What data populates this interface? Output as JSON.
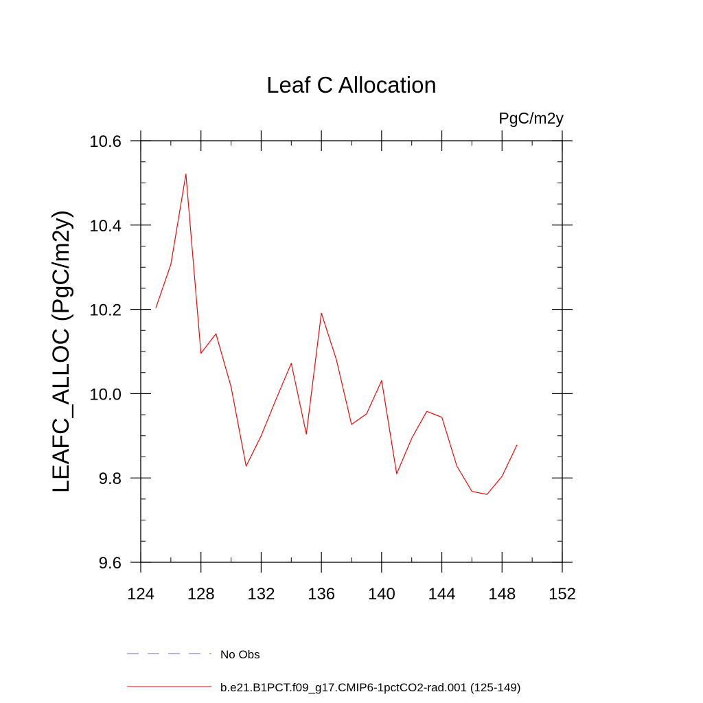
{
  "chart_data": {
    "type": "line",
    "title": "Leaf C Allocation",
    "units_label": "PgC/m2y",
    "xlabel": "",
    "ylabel": "LEAFC_ALLOC  (PgC/m2y)",
    "xlim": [
      124,
      152
    ],
    "ylim": [
      9.6,
      10.6
    ],
    "x_ticks": [
      124,
      128,
      132,
      136,
      140,
      144,
      148,
      152
    ],
    "x_tick_labels": [
      "124",
      "128",
      "132",
      "136",
      "140",
      "144",
      "148",
      "152"
    ],
    "y_ticks": [
      9.6,
      9.8,
      10.0,
      10.2,
      10.4,
      10.6
    ],
    "y_tick_labels": [
      "9.6",
      "9.8",
      "10.0",
      "10.2",
      "10.4",
      "10.6"
    ],
    "grid": false,
    "legend_position": "bottom",
    "series": [
      {
        "name": "No Obs",
        "color": "#6666cc",
        "style": "dashed",
        "x": [],
        "y": []
      },
      {
        "name": "b.e21.B1PCT.f09_g17.CMIP6-1pctCO2-rad.001 (125-149)",
        "color": "#ff0000",
        "style": "solid",
        "x": [
          125,
          126,
          127,
          128,
          129,
          130,
          131,
          132,
          133,
          134,
          135,
          136,
          137,
          138,
          139,
          140,
          141,
          142,
          143,
          144,
          145,
          146,
          147,
          148,
          149
        ],
        "y": [
          10.203,
          10.307,
          10.521,
          10.096,
          10.142,
          10.016,
          9.828,
          9.9,
          9.988,
          10.072,
          9.904,
          10.191,
          10.08,
          9.927,
          9.952,
          10.031,
          9.81,
          9.894,
          9.958,
          9.944,
          9.828,
          9.768,
          9.761,
          9.804,
          9.879
        ]
      }
    ]
  }
}
